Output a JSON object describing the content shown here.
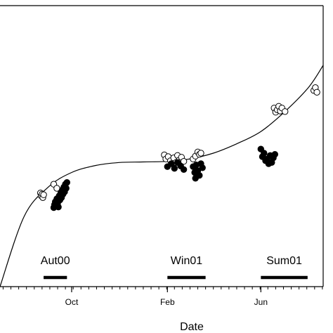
{
  "chart_data": {
    "type": "scatter",
    "title": "",
    "xlabel": "Date",
    "ylabel": "",
    "x_axis": {
      "type": "date",
      "range": [
        "2000-07-01",
        "2001-08-20"
      ],
      "ticks": [
        {
          "date": "2000-10-01",
          "label": "Oct"
        },
        {
          "date": "2001-02-01",
          "label": "Feb"
        },
        {
          "date": "2001-06-01",
          "label": "Jun"
        }
      ]
    },
    "y_axis": {
      "range": [
        0,
        480
      ],
      "tick_labels_visible": false
    },
    "grid": false,
    "legend": "none",
    "season_bars": [
      {
        "label": "Aut00",
        "start": "2000-08-26",
        "end": "2000-09-25"
      },
      {
        "label": "Win01",
        "start": "2001-02-01",
        "end": "2001-03-22"
      },
      {
        "label": "Sum01",
        "start": "2001-06-01",
        "end": "2001-07-31"
      }
    ],
    "fitted_curve": {
      "description": "smooth trend line",
      "points": [
        [
          "2000-07-01",
          0
        ],
        [
          "2000-08-01",
          120
        ],
        [
          "2000-09-01",
          170
        ],
        [
          "2000-10-01",
          195
        ],
        [
          "2000-11-01",
          207
        ],
        [
          "2000-12-01",
          212
        ],
        [
          "2001-01-01",
          213
        ],
        [
          "2001-02-01",
          214
        ],
        [
          "2001-03-01",
          218
        ],
        [
          "2001-04-01",
          228
        ],
        [
          "2001-05-01",
          244
        ],
        [
          "2001-06-01",
          265
        ],
        [
          "2001-07-01",
          298
        ],
        [
          "2001-08-01",
          340
        ],
        [
          "2001-08-20",
          378
        ]
      ]
    },
    "series": [
      {
        "marker": "open-circle",
        "points": [
          [
            "2000-08-22",
            160
          ],
          [
            "2000-08-23",
            155
          ],
          [
            "2000-08-24",
            158
          ],
          [
            "2000-08-25",
            152
          ],
          [
            "2000-08-26",
            157
          ],
          [
            "2000-09-08",
            175
          ],
          [
            "2000-09-12",
            168
          ],
          [
            "2001-01-28",
            225
          ],
          [
            "2001-01-30",
            218
          ],
          [
            "2001-02-02",
            222
          ],
          [
            "2001-02-05",
            215
          ],
          [
            "2001-02-09",
            220
          ],
          [
            "2001-02-12",
            212
          ],
          [
            "2001-02-14",
            224
          ],
          [
            "2001-02-16",
            216
          ],
          [
            "2001-02-19",
            221
          ],
          [
            "2001-02-22",
            214
          ],
          [
            "2001-03-06",
            218
          ],
          [
            "2001-03-09",
            223
          ],
          [
            "2001-03-12",
            230
          ],
          [
            "2001-03-14",
            226
          ],
          [
            "2001-03-16",
            228
          ],
          [
            "2001-06-18",
            305
          ],
          [
            "2001-06-20",
            298
          ],
          [
            "2001-06-22",
            302
          ],
          [
            "2001-06-24",
            308
          ],
          [
            "2001-06-26",
            300
          ],
          [
            "2001-06-28",
            305
          ],
          [
            "2001-07-02",
            299
          ],
          [
            "2001-08-08",
            335
          ],
          [
            "2001-08-10",
            340
          ],
          [
            "2001-08-12",
            332
          ]
        ]
      },
      {
        "marker": "filled-circle",
        "points": [
          [
            "2000-09-08",
            135
          ],
          [
            "2000-09-09",
            140
          ],
          [
            "2000-09-10",
            145
          ],
          [
            "2000-09-11",
            138
          ],
          [
            "2000-09-12",
            150
          ],
          [
            "2000-09-13",
            142
          ],
          [
            "2000-09-14",
            136
          ],
          [
            "2000-09-15",
            155
          ],
          [
            "2000-09-16",
            148
          ],
          [
            "2000-09-17",
            160
          ],
          [
            "2000-09-18",
            152
          ],
          [
            "2000-09-19",
            165
          ],
          [
            "2000-09-20",
            158
          ],
          [
            "2000-09-21",
            170
          ],
          [
            "2000-09-22",
            162
          ],
          [
            "2000-09-23",
            175
          ],
          [
            "2000-09-24",
            168
          ],
          [
            "2000-09-25",
            178
          ],
          [
            "2001-02-01",
            205
          ],
          [
            "2001-02-06",
            210
          ],
          [
            "2001-02-10",
            202
          ],
          [
            "2001-02-14",
            212
          ],
          [
            "2001-02-18",
            206
          ],
          [
            "2001-02-22",
            200
          ],
          [
            "2001-03-06",
            205
          ],
          [
            "2001-03-08",
            195
          ],
          [
            "2001-03-09",
            185
          ],
          [
            "2001-03-10",
            208
          ],
          [
            "2001-03-12",
            198
          ],
          [
            "2001-03-14",
            190
          ],
          [
            "2001-03-16",
            210
          ],
          [
            "2001-03-18",
            203
          ],
          [
            "2001-06-01",
            235
          ],
          [
            "2001-06-03",
            222
          ],
          [
            "2001-06-05",
            228
          ],
          [
            "2001-06-07",
            215
          ],
          [
            "2001-06-09",
            218
          ],
          [
            "2001-06-11",
            210
          ],
          [
            "2001-06-13",
            224
          ],
          [
            "2001-06-15",
            212
          ],
          [
            "2001-06-17",
            220
          ],
          [
            "2001-06-19",
            226
          ]
        ]
      }
    ]
  }
}
